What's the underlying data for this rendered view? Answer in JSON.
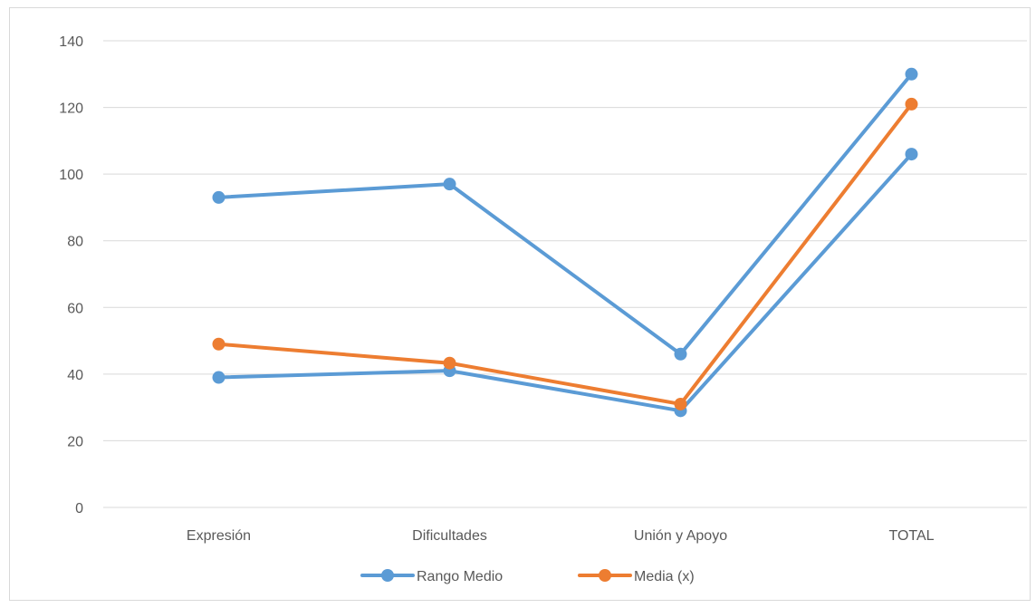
{
  "chart_data": {
    "type": "line",
    "categories": [
      "Expresión",
      "Dificultades",
      "Unión y Apoyo",
      "TOTAL"
    ],
    "ylim": [
      0,
      140
    ],
    "yticks": [
      0,
      20,
      40,
      60,
      80,
      100,
      120,
      140
    ],
    "grid": true,
    "legend_position": "bottom",
    "series": [
      {
        "name": "Rango Medio",
        "color": "#5b9bd5",
        "values": [
          93,
          97,
          46,
          130
        ]
      },
      {
        "name": "Rango Medio",
        "color": "#5b9bd5",
        "values": [
          39,
          41,
          29,
          106
        ],
        "show_in_legend": false
      },
      {
        "name": "Media (x)",
        "color": "#ed7d31",
        "values": [
          49,
          43.3,
          31,
          121
        ]
      }
    ]
  }
}
